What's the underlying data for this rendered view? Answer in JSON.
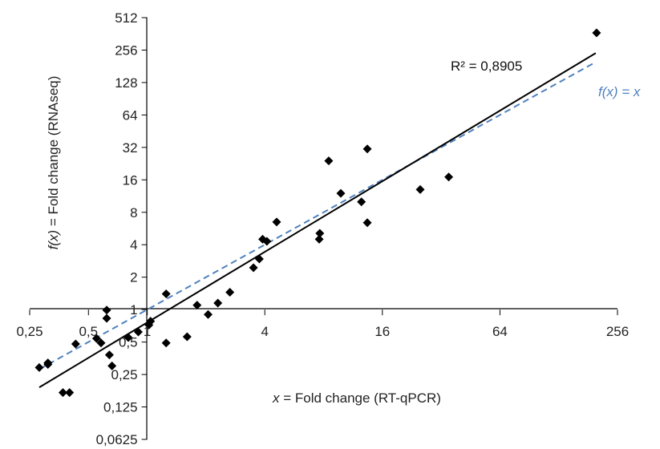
{
  "chart_data": {
    "type": "scatter",
    "scale": "log2",
    "xlim": [
      0.25,
      256
    ],
    "ylim": [
      0.0625,
      512
    ],
    "x_ticks": [
      "0,25",
      "0,5",
      "1",
      "4",
      "16",
      "64",
      "256"
    ],
    "y_ticks": [
      "0,0625",
      "0,125",
      "0,25",
      "0,5",
      "1",
      "2",
      "4",
      "8",
      "16",
      "32",
      "64",
      "128",
      "256",
      "512"
    ],
    "xlabel": {
      "var": "x",
      "text": " = Fold change (RT-qPCR)"
    },
    "ylabel": {
      "var": "f(x)",
      "text": " = Fold change (RNAseq)"
    },
    "r2_label": "R² = 0,8905",
    "identity_label": "f(x) = x",
    "points": [
      {
        "x": 0.28,
        "y": 0.29
      },
      {
        "x": 0.31,
        "y": 0.31
      },
      {
        "x": 0.31,
        "y": 0.32
      },
      {
        "x": 0.37,
        "y": 0.17
      },
      {
        "x": 0.4,
        "y": 0.17
      },
      {
        "x": 0.43,
        "y": 0.48
      },
      {
        "x": 0.55,
        "y": 0.54
      },
      {
        "x": 0.58,
        "y": 0.49
      },
      {
        "x": 0.62,
        "y": 0.83
      },
      {
        "x": 0.62,
        "y": 0.99
      },
      {
        "x": 0.64,
        "y": 0.38
      },
      {
        "x": 0.66,
        "y": 0.3
      },
      {
        "x": 0.8,
        "y": 0.55
      },
      {
        "x": 0.9,
        "y": 0.62
      },
      {
        "x": 1.02,
        "y": 0.72
      },
      {
        "x": 1.04,
        "y": 0.78
      },
      {
        "x": 1.25,
        "y": 1.4
      },
      {
        "x": 1.25,
        "y": 0.49
      },
      {
        "x": 1.6,
        "y": 0.56
      },
      {
        "x": 1.8,
        "y": 1.1
      },
      {
        "x": 2.05,
        "y": 0.9
      },
      {
        "x": 2.3,
        "y": 1.15
      },
      {
        "x": 2.65,
        "y": 1.45
      },
      {
        "x": 3.5,
        "y": 2.45
      },
      {
        "x": 3.75,
        "y": 2.95
      },
      {
        "x": 3.9,
        "y": 4.5
      },
      {
        "x": 4.1,
        "y": 4.3
      },
      {
        "x": 4.6,
        "y": 6.5
      },
      {
        "x": 7.6,
        "y": 4.5
      },
      {
        "x": 7.65,
        "y": 5.1
      },
      {
        "x": 8.5,
        "y": 24.0
      },
      {
        "x": 9.8,
        "y": 12.0
      },
      {
        "x": 12.5,
        "y": 10.0
      },
      {
        "x": 13.4,
        "y": 6.4
      },
      {
        "x": 13.4,
        "y": 31.0
      },
      {
        "x": 25.0,
        "y": 13.0
      },
      {
        "x": 35.0,
        "y": 17.0
      },
      {
        "x": 200,
        "y": 370
      }
    ],
    "fit_line": {
      "x": [
        0.28,
        198
      ],
      "y": [
        0.19,
        240
      ]
    },
    "identity_line": {
      "x": [
        0.28,
        198
      ],
      "y": [
        0.28,
        198
      ]
    },
    "colors": {
      "points": "#000000",
      "fit": "#000000",
      "identity": "#4f81bd",
      "identity_label": "#4f81bd",
      "axis": "#000000"
    },
    "grid": false
  }
}
